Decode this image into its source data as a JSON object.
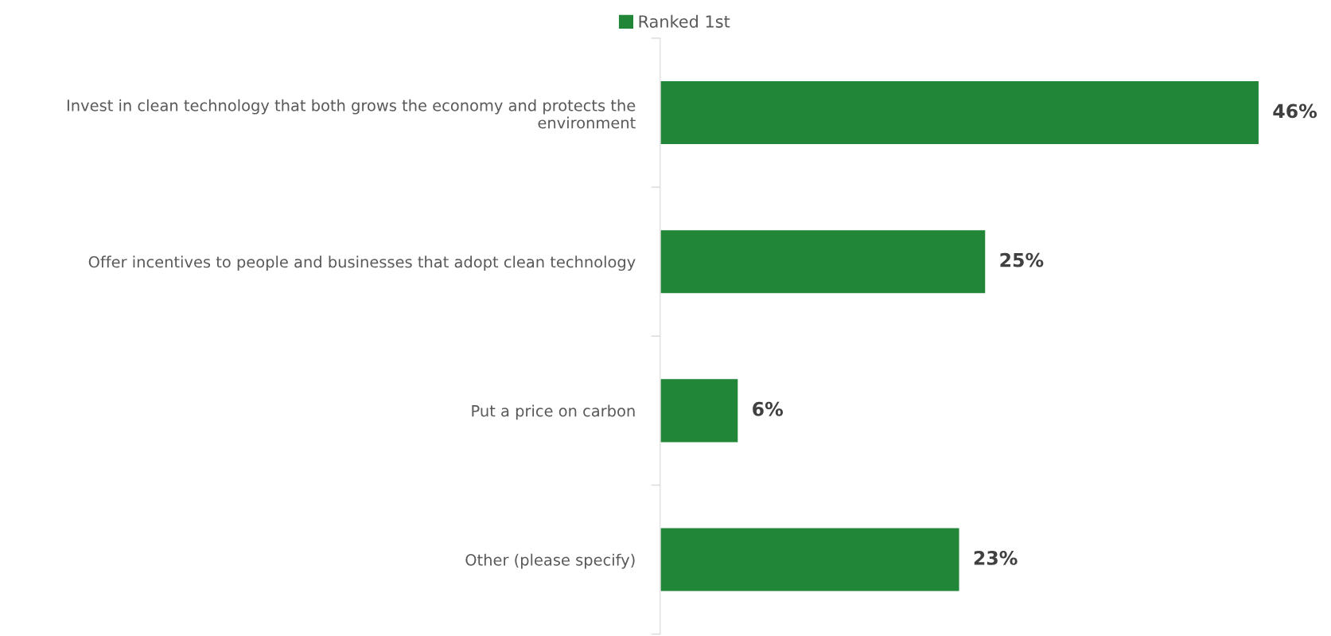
{
  "chart_data": {
    "type": "bar",
    "orientation": "horizontal",
    "categories": [
      "Invest in clean technology that both grows the economy and protects the environment",
      "Offer incentives to people and businesses that adopt clean technology",
      "Put a price on carbon",
      "Other (please specify)"
    ],
    "series": [
      {
        "name": "Ranked 1st",
        "color": "#228639",
        "values": [
          46,
          25,
          6,
          23
        ],
        "value_labels": [
          "46%",
          "25%",
          "6%",
          "23%"
        ]
      }
    ],
    "legend": "top",
    "grid": false
  }
}
